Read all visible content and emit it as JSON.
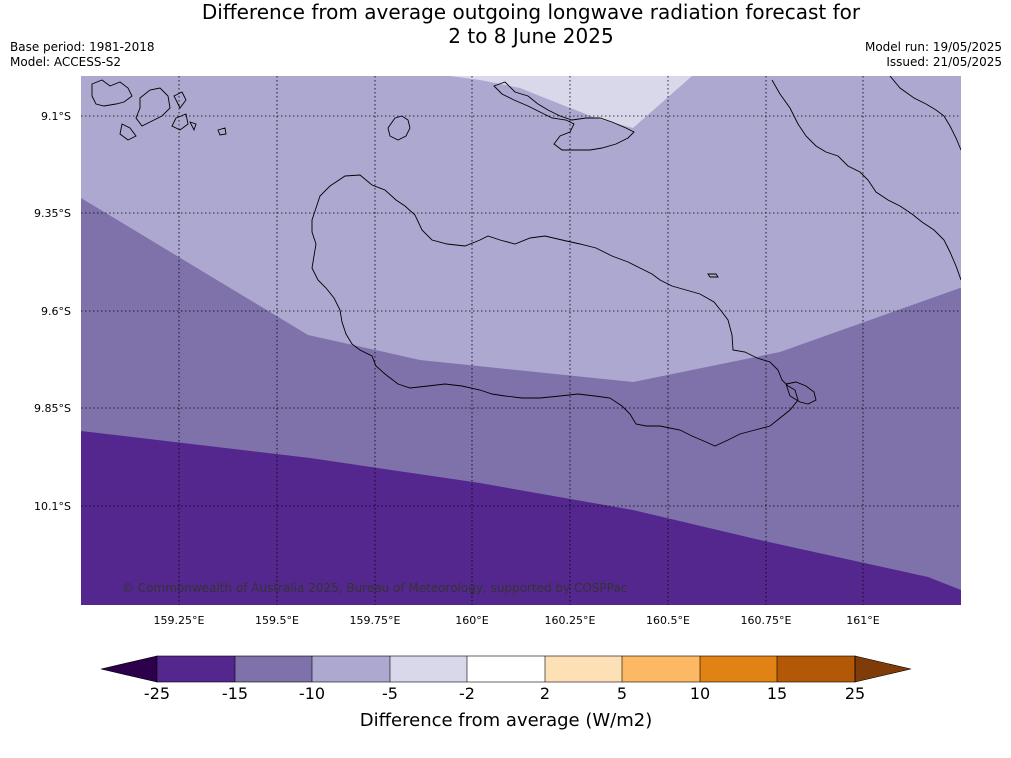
{
  "title": {
    "line1": "Difference from average outgoing longwave radiation forecast for",
    "line2": "2 to 8 June 2025"
  },
  "meta": {
    "base_period": "Base period: 1981-2018",
    "model": "Model: ACCESS-S2",
    "model_run": "Model run: 19/05/2025",
    "issued": "Issued: 21/05/2025"
  },
  "map": {
    "lat_labels": [
      "9.1°S",
      "9.35°S",
      "9.6°S",
      "9.85°S",
      "10.1°S"
    ],
    "lon_labels": [
      "159.25°E",
      "159.5°E",
      "159.75°E",
      "160°E",
      "160.25°E",
      "160.5°E",
      "160.75°E",
      "161°E"
    ],
    "copyright": "© Commonwealth of Australia 2025, Bureau of Meteorology, supported by COSPPac",
    "colors": {
      "band_-25_-15": "#54278f",
      "band_-15_-10": "#7f72ab",
      "band_-10_-5": "#ada8cf",
      "band_-5_-2": "#d8d8ea",
      "coastline": "#000000",
      "gridline": "#000000"
    }
  },
  "colorbar": {
    "title": "Difference from average (W/m2)",
    "tick_labels": [
      "-25",
      "-15",
      "-10",
      "-5",
      "-2",
      "2",
      "5",
      "10",
      "15",
      "25"
    ],
    "colors": [
      "#54278f",
      "#7f72ab",
      "#ada8cf",
      "#d8d8ea",
      "#ffffff",
      "#fee0b6",
      "#fdb863",
      "#e08214",
      "#b35806"
    ],
    "extend_low_color": "#2d004b",
    "extend_high_color": "#7f3b08"
  }
}
